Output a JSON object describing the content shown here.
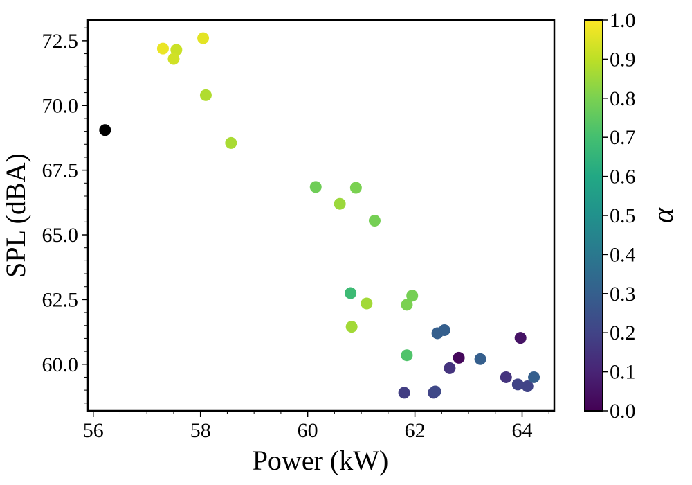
{
  "chart_data": {
    "type": "scatter",
    "title": "",
    "xlabel": "Power (kW)",
    "ylabel": "SPL (dBA)",
    "xlim": [
      55.9,
      64.6
    ],
    "ylim": [
      58.2,
      73.3
    ],
    "xticks": [
      56,
      58,
      60,
      62,
      64
    ],
    "yticks": [
      60.0,
      62.5,
      65.0,
      67.5,
      70.0,
      72.5
    ],
    "xtick_labels": [
      "56",
      "58",
      "60",
      "62",
      "64"
    ],
    "ytick_labels": [
      "60.0",
      "62.5",
      "65.0",
      "67.5",
      "70.0",
      "72.5"
    ],
    "grid": false,
    "colorbar": {
      "label": "α",
      "colormap": "viridis",
      "range": [
        0.0,
        1.0
      ],
      "ticks": [
        0.0,
        0.1,
        0.2,
        0.3,
        0.4,
        0.5,
        0.6,
        0.7,
        0.8,
        0.9,
        1.0
      ],
      "tick_labels": [
        "0.0",
        "0.1",
        "0.2",
        "0.3",
        "0.4",
        "0.5",
        "0.6",
        "0.7",
        "0.8",
        "0.9",
        "1.0"
      ]
    },
    "reference_point": {
      "x": 56.22,
      "y": 69.05,
      "color": "#000000"
    },
    "points": [
      {
        "x": 57.3,
        "y": 72.2,
        "alpha": 0.97
      },
      {
        "x": 57.55,
        "y": 72.15,
        "alpha": 0.92
      },
      {
        "x": 57.5,
        "y": 71.8,
        "alpha": 0.93
      },
      {
        "x": 58.05,
        "y": 72.6,
        "alpha": 0.96
      },
      {
        "x": 58.1,
        "y": 70.4,
        "alpha": 0.88
      },
      {
        "x": 58.57,
        "y": 68.55,
        "alpha": 0.87
      },
      {
        "x": 60.15,
        "y": 66.85,
        "alpha": 0.78
      },
      {
        "x": 60.6,
        "y": 66.2,
        "alpha": 0.85
      },
      {
        "x": 60.9,
        "y": 66.82,
        "alpha": 0.8
      },
      {
        "x": 61.25,
        "y": 65.55,
        "alpha": 0.79
      },
      {
        "x": 60.8,
        "y": 62.75,
        "alpha": 0.68
      },
      {
        "x": 61.1,
        "y": 62.35,
        "alpha": 0.86
      },
      {
        "x": 60.82,
        "y": 61.45,
        "alpha": 0.86
      },
      {
        "x": 61.85,
        "y": 62.3,
        "alpha": 0.8
      },
      {
        "x": 61.95,
        "y": 62.65,
        "alpha": 0.79
      },
      {
        "x": 61.85,
        "y": 60.35,
        "alpha": 0.72
      },
      {
        "x": 62.42,
        "y": 61.2,
        "alpha": 0.3
      },
      {
        "x": 62.55,
        "y": 61.32,
        "alpha": 0.3
      },
      {
        "x": 61.8,
        "y": 58.9,
        "alpha": 0.18
      },
      {
        "x": 62.35,
        "y": 58.9,
        "alpha": 0.2
      },
      {
        "x": 62.38,
        "y": 58.95,
        "alpha": 0.22
      },
      {
        "x": 62.65,
        "y": 59.85,
        "alpha": 0.15
      },
      {
        "x": 62.82,
        "y": 60.25,
        "alpha": 0.02
      },
      {
        "x": 63.22,
        "y": 60.2,
        "alpha": 0.3
      },
      {
        "x": 63.7,
        "y": 59.5,
        "alpha": 0.15
      },
      {
        "x": 63.97,
        "y": 61.02,
        "alpha": 0.05
      },
      {
        "x": 63.92,
        "y": 59.22,
        "alpha": 0.2
      },
      {
        "x": 64.1,
        "y": 59.15,
        "alpha": 0.2
      },
      {
        "x": 64.22,
        "y": 59.5,
        "alpha": 0.3
      }
    ]
  }
}
